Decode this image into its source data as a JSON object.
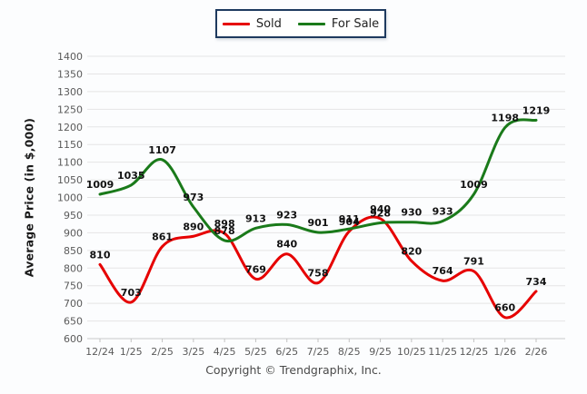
{
  "legend": {
    "items": [
      {
        "label": "Sold",
        "color": "#e60000"
      },
      {
        "label": "For Sale",
        "color": "#1a7a1a"
      }
    ]
  },
  "footer": {
    "copyright": "Copyright © Trendgraphix, Inc."
  },
  "chart_data": {
    "type": "line",
    "title": "",
    "xlabel": "",
    "ylabel": "Average Price (in $,000)",
    "ylim": [
      600,
      1400
    ],
    "ytick_step": 50,
    "grid": true,
    "smooth": true,
    "legend_position": "top-center",
    "categories": [
      "12/24",
      "1/25",
      "2/25",
      "3/25",
      "4/25",
      "5/25",
      "6/25",
      "7/25",
      "8/25",
      "9/25",
      "10/25",
      "11/25",
      "12/25",
      "1/26",
      "2/26"
    ],
    "series": [
      {
        "name": "Sold",
        "color": "#e60000",
        "values": [
          810,
          703,
          861,
          890,
          898,
          769,
          840,
          758,
          904,
          940,
          820,
          764,
          791,
          660,
          734
        ]
      },
      {
        "name": "For Sale",
        "color": "#1a7a1a",
        "values": [
          1009,
          1035,
          1107,
          973,
          878,
          913,
          923,
          901,
          911,
          928,
          930,
          933,
          1009,
          1198,
          1219
        ]
      }
    ]
  }
}
